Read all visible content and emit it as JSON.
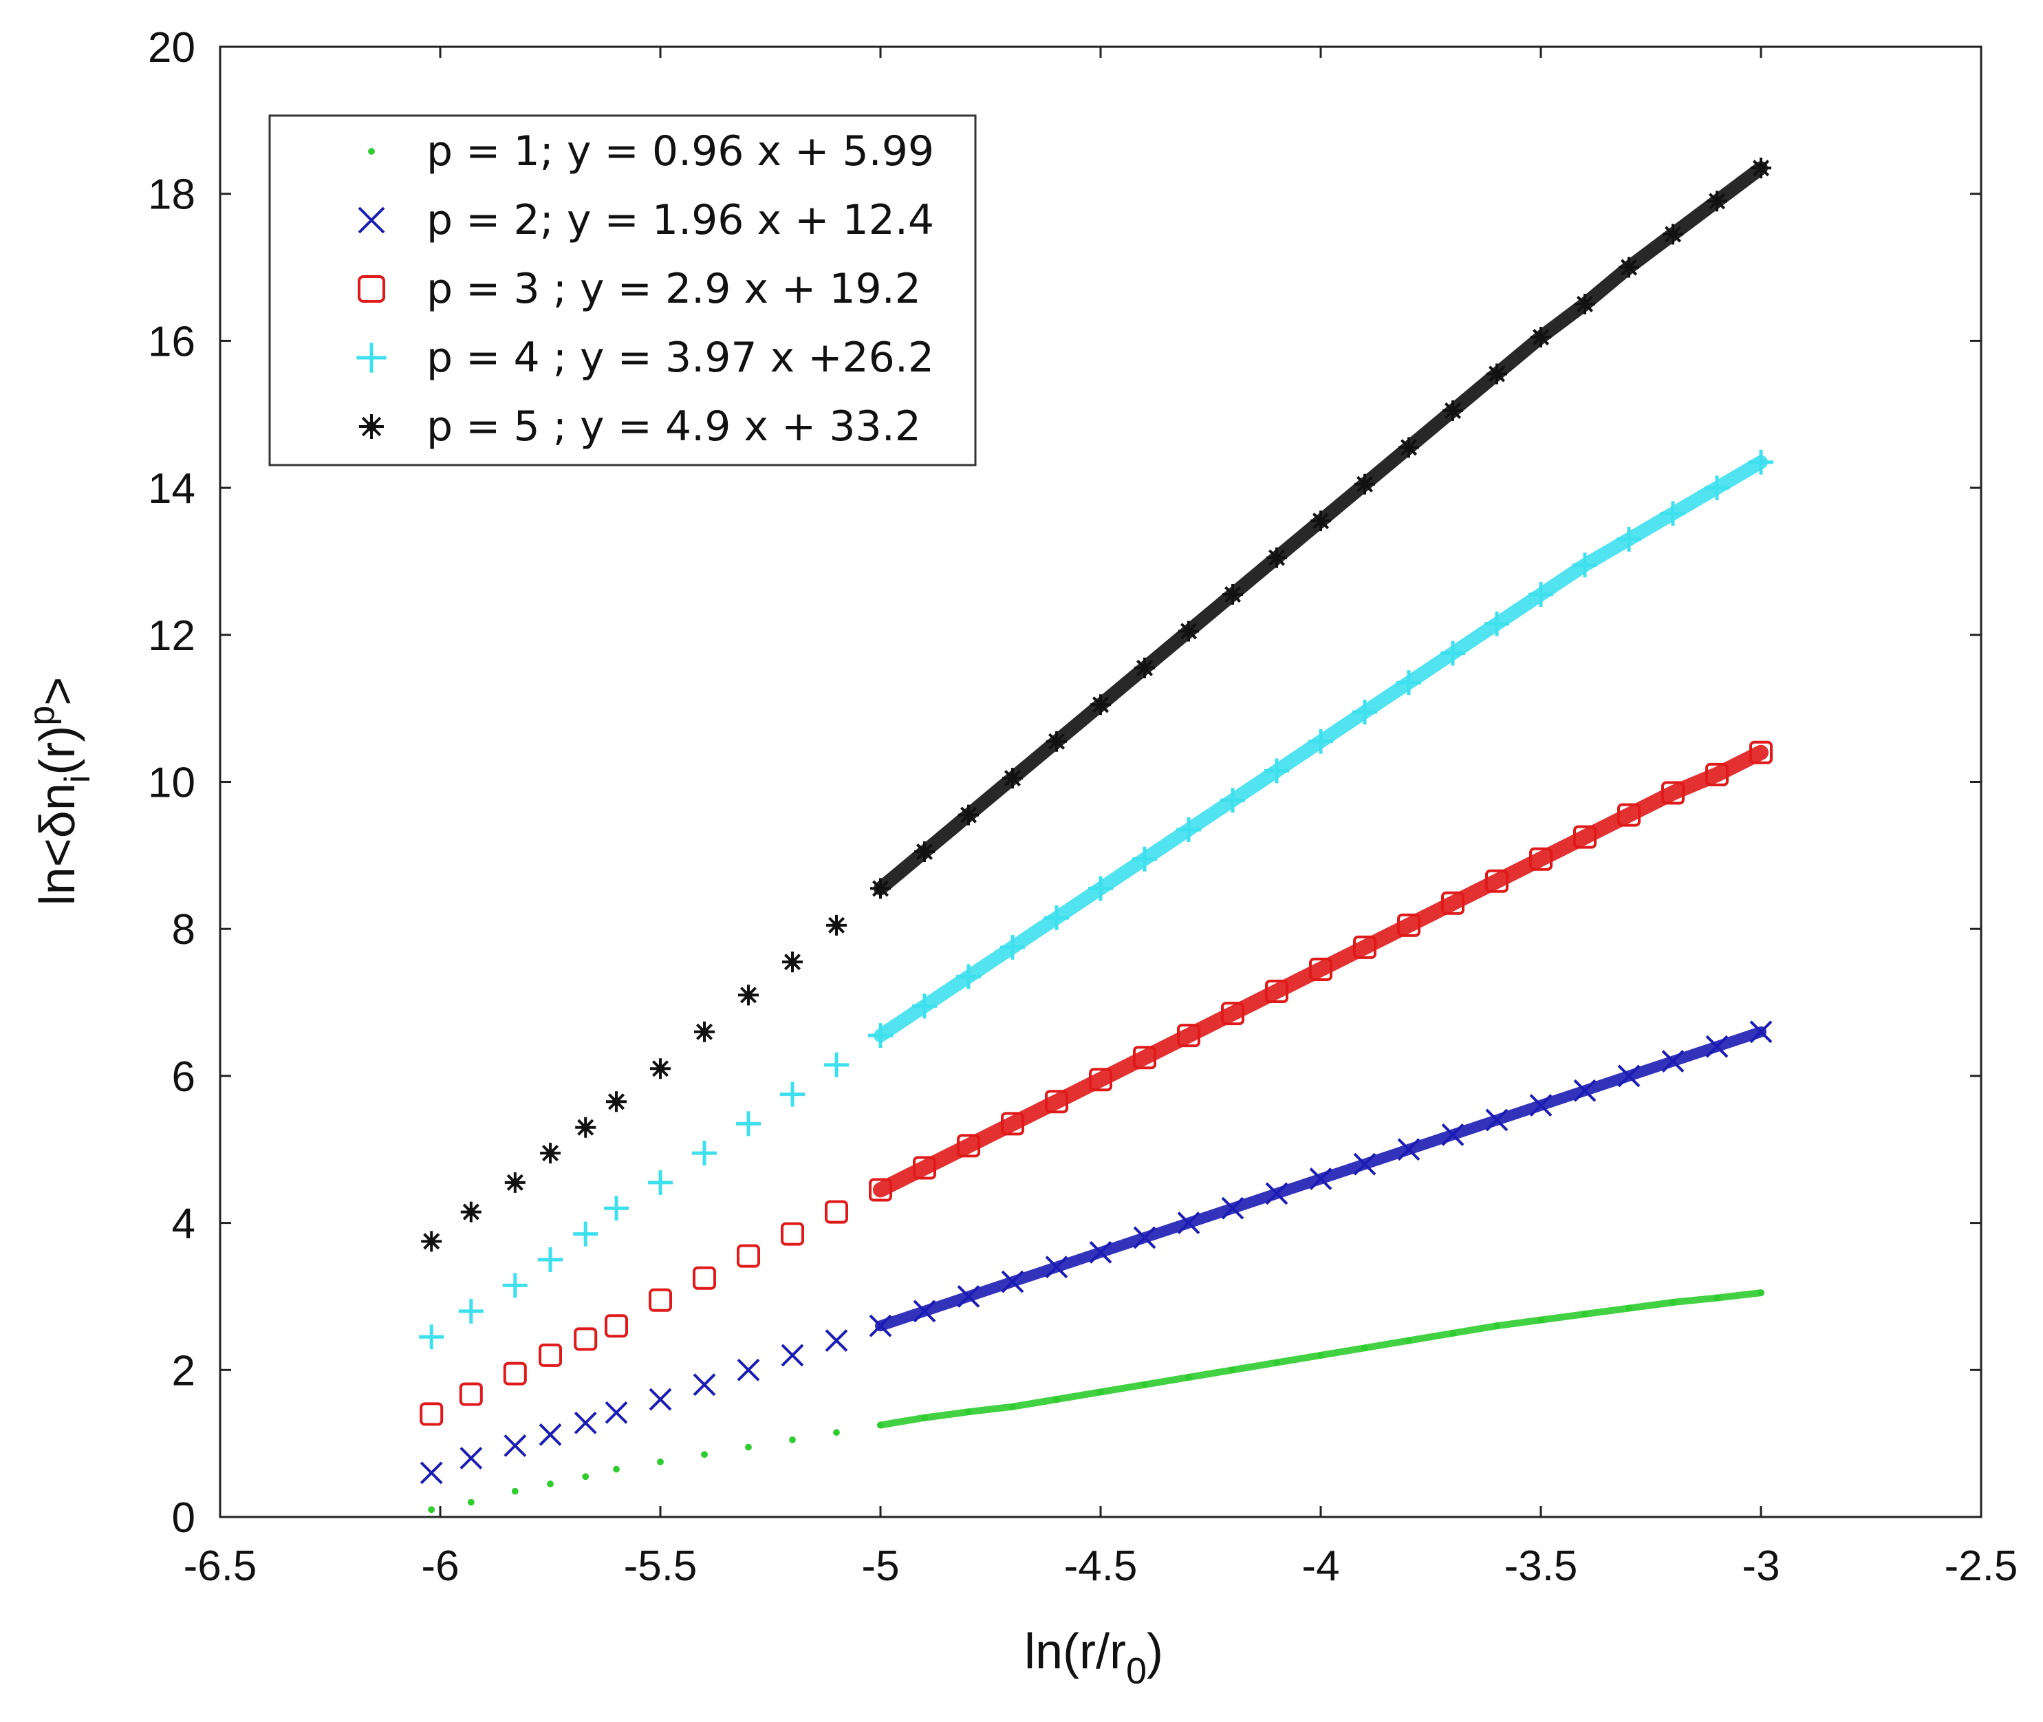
{
  "chart_data": {
    "type": "scatter",
    "title": "",
    "xlabel": {
      "main": "ln(r/r",
      "sub": "0",
      "tail": ")"
    },
    "ylabel": {
      "main": "ln<δn",
      "sub": "i",
      "mid": "(r)",
      "sup": "p",
      "tail": ">"
    },
    "xlim": [
      -6.5,
      -2.5
    ],
    "ylim": [
      0,
      20
    ],
    "xticks": [
      -6.5,
      -6,
      -5.5,
      -5,
      -4.5,
      -4,
      -3.5,
      -3,
      -2.5
    ],
    "yticks": [
      0,
      2,
      4,
      6,
      8,
      10,
      12,
      14,
      16,
      18,
      20
    ],
    "grid": false,
    "legend_position": "top-left",
    "x_range": [
      -6.02,
      -3.0
    ],
    "series": [
      {
        "name": "p = 1; y = 0.96 x + 5.99",
        "p": 1,
        "slope": 0.96,
        "intercept": 5.99,
        "marker": "dot",
        "color": "#2ecc2e",
        "points": [
          [
            -6.02,
            0.1
          ],
          [
            -5.93,
            0.2
          ],
          [
            -5.83,
            0.35
          ],
          [
            -5.75,
            0.45
          ],
          [
            -5.67,
            0.55
          ],
          [
            -5.6,
            0.65
          ],
          [
            -5.5,
            0.75
          ],
          [
            -5.4,
            0.85
          ],
          [
            -5.3,
            0.95
          ],
          [
            -5.2,
            1.05
          ],
          [
            -5.1,
            1.15
          ],
          [
            -5.0,
            1.25
          ],
          [
            -4.9,
            1.35
          ],
          [
            -4.8,
            1.43
          ],
          [
            -4.7,
            1.5
          ],
          [
            -4.6,
            1.6
          ],
          [
            -4.5,
            1.7
          ],
          [
            -4.4,
            1.8
          ],
          [
            -4.3,
            1.9
          ],
          [
            -4.2,
            2.0
          ],
          [
            -4.1,
            2.1
          ],
          [
            -4.0,
            2.2
          ],
          [
            -3.9,
            2.3
          ],
          [
            -3.8,
            2.4
          ],
          [
            -3.7,
            2.5
          ],
          [
            -3.6,
            2.6
          ],
          [
            -3.5,
            2.68
          ],
          [
            -3.4,
            2.76
          ],
          [
            -3.3,
            2.84
          ],
          [
            -3.2,
            2.92
          ],
          [
            -3.1,
            2.98
          ],
          [
            -3.0,
            3.05
          ]
        ]
      },
      {
        "name": "p = 2; y = 1.96 x + 12.4",
        "p": 2,
        "slope": 1.96,
        "intercept": 12.4,
        "marker": "x",
        "color": "#1c1cb4",
        "points": [
          [
            -6.02,
            0.6
          ],
          [
            -5.93,
            0.8
          ],
          [
            -5.83,
            0.97
          ],
          [
            -5.75,
            1.12
          ],
          [
            -5.67,
            1.28
          ],
          [
            -5.6,
            1.42
          ],
          [
            -5.5,
            1.6
          ],
          [
            -5.4,
            1.8
          ],
          [
            -5.3,
            2.0
          ],
          [
            -5.2,
            2.2
          ],
          [
            -5.1,
            2.4
          ],
          [
            -5.0,
            2.6
          ],
          [
            -4.9,
            2.8
          ],
          [
            -4.8,
            3.0
          ],
          [
            -4.7,
            3.2
          ],
          [
            -4.6,
            3.4
          ],
          [
            -4.5,
            3.6
          ],
          [
            -4.4,
            3.8
          ],
          [
            -4.3,
            4.0
          ],
          [
            -4.2,
            4.2
          ],
          [
            -4.1,
            4.4
          ],
          [
            -4.0,
            4.6
          ],
          [
            -3.9,
            4.8
          ],
          [
            -3.8,
            5.0
          ],
          [
            -3.7,
            5.2
          ],
          [
            -3.6,
            5.4
          ],
          [
            -3.5,
            5.6
          ],
          [
            -3.4,
            5.8
          ],
          [
            -3.3,
            6.0
          ],
          [
            -3.2,
            6.2
          ],
          [
            -3.1,
            6.4
          ],
          [
            -3.0,
            6.6
          ]
        ]
      },
      {
        "name": "p = 3 ; y = 2.9 x + 19.2",
        "p": 3,
        "slope": 2.9,
        "intercept": 19.2,
        "marker": "square",
        "color": "#e01a1a",
        "points": [
          [
            -6.02,
            1.4
          ],
          [
            -5.93,
            1.67
          ],
          [
            -5.83,
            1.95
          ],
          [
            -5.75,
            2.2
          ],
          [
            -5.67,
            2.42
          ],
          [
            -5.6,
            2.6
          ],
          [
            -5.5,
            2.95
          ],
          [
            -5.4,
            3.25
          ],
          [
            -5.3,
            3.55
          ],
          [
            -5.2,
            3.85
          ],
          [
            -5.1,
            4.15
          ],
          [
            -5.0,
            4.45
          ],
          [
            -4.9,
            4.75
          ],
          [
            -4.8,
            5.05
          ],
          [
            -4.7,
            5.35
          ],
          [
            -4.6,
            5.65
          ],
          [
            -4.5,
            5.95
          ],
          [
            -4.4,
            6.25
          ],
          [
            -4.3,
            6.55
          ],
          [
            -4.2,
            6.85
          ],
          [
            -4.1,
            7.15
          ],
          [
            -4.0,
            7.45
          ],
          [
            -3.9,
            7.75
          ],
          [
            -3.8,
            8.05
          ],
          [
            -3.7,
            8.35
          ],
          [
            -3.6,
            8.65
          ],
          [
            -3.5,
            8.95
          ],
          [
            -3.4,
            9.25
          ],
          [
            -3.3,
            9.55
          ],
          [
            -3.2,
            9.85
          ],
          [
            -3.1,
            10.1
          ],
          [
            -3.0,
            10.4
          ]
        ]
      },
      {
        "name": "p = 4 ; y = 3.97 x +26.2",
        "p": 4,
        "slope": 3.97,
        "intercept": 26.2,
        "marker": "plus",
        "color": "#3ee0ee",
        "points": [
          [
            -6.02,
            2.45
          ],
          [
            -5.93,
            2.8
          ],
          [
            -5.83,
            3.15
          ],
          [
            -5.75,
            3.5
          ],
          [
            -5.67,
            3.85
          ],
          [
            -5.6,
            4.2
          ],
          [
            -5.5,
            4.55
          ],
          [
            -5.4,
            4.95
          ],
          [
            -5.3,
            5.35
          ],
          [
            -5.2,
            5.75
          ],
          [
            -5.1,
            6.15
          ],
          [
            -5.0,
            6.55
          ],
          [
            -4.9,
            6.95
          ],
          [
            -4.8,
            7.35
          ],
          [
            -4.7,
            7.75
          ],
          [
            -4.6,
            8.15
          ],
          [
            -4.5,
            8.55
          ],
          [
            -4.4,
            8.95
          ],
          [
            -4.3,
            9.35
          ],
          [
            -4.2,
            9.75
          ],
          [
            -4.1,
            10.15
          ],
          [
            -4.0,
            10.55
          ],
          [
            -3.9,
            10.95
          ],
          [
            -3.8,
            11.35
          ],
          [
            -3.7,
            11.75
          ],
          [
            -3.6,
            12.15
          ],
          [
            -3.5,
            12.55
          ],
          [
            -3.4,
            12.95
          ],
          [
            -3.3,
            13.3
          ],
          [
            -3.2,
            13.65
          ],
          [
            -3.1,
            14.0
          ],
          [
            -3.0,
            14.35
          ]
        ]
      },
      {
        "name": "p = 5 ; y = 4.9 x + 33.2",
        "p": 5,
        "slope": 4.9,
        "intercept": 33.2,
        "marker": "asterisk",
        "color": "#111111",
        "points": [
          [
            -6.02,
            3.75
          ],
          [
            -5.93,
            4.15
          ],
          [
            -5.83,
            4.55
          ],
          [
            -5.75,
            4.95
          ],
          [
            -5.67,
            5.3
          ],
          [
            -5.6,
            5.65
          ],
          [
            -5.5,
            6.1
          ],
          [
            -5.4,
            6.6
          ],
          [
            -5.3,
            7.1
          ],
          [
            -5.2,
            7.55
          ],
          [
            -5.1,
            8.05
          ],
          [
            -5.0,
            8.55
          ],
          [
            -4.9,
            9.05
          ],
          [
            -4.8,
            9.55
          ],
          [
            -4.7,
            10.05
          ],
          [
            -4.6,
            10.55
          ],
          [
            -4.5,
            11.05
          ],
          [
            -4.4,
            11.55
          ],
          [
            -4.3,
            12.05
          ],
          [
            -4.2,
            12.55
          ],
          [
            -4.1,
            13.05
          ],
          [
            -4.0,
            13.55
          ],
          [
            -3.9,
            14.05
          ],
          [
            -3.8,
            14.55
          ],
          [
            -3.7,
            15.05
          ],
          [
            -3.6,
            15.55
          ],
          [
            -3.5,
            16.05
          ],
          [
            -3.4,
            16.5
          ],
          [
            -3.3,
            17.0
          ],
          [
            -3.2,
            17.45
          ],
          [
            -3.1,
            17.9
          ],
          [
            -3.0,
            18.35
          ]
        ]
      }
    ]
  }
}
